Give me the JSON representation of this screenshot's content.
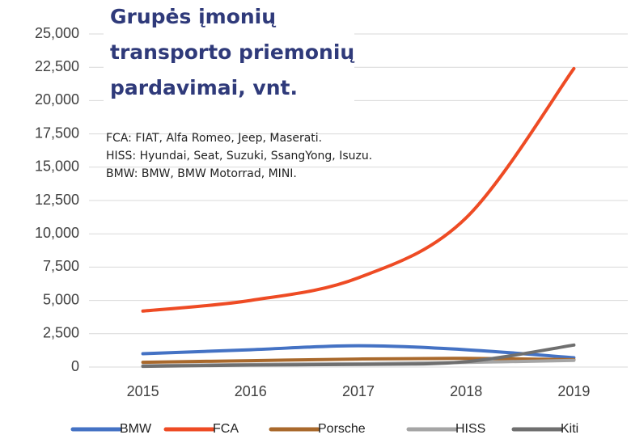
{
  "chart_data": {
    "type": "line",
    "title": [
      "Grupės įmonių",
      "transporto priemonių",
      "pardavimai, vnt."
    ],
    "annotations": [
      "FCA: FIAT, Alfa Romeo, Jeep, Maserati.",
      "HISS: Hyundai, Seat, Suzuki, SsangYong, Isuzu.",
      "BMW: BMW, BMW Motorrad, MINI."
    ],
    "categories": [
      "2015",
      "2016",
      "2017",
      "2018",
      "2019"
    ],
    "series": [
      {
        "name": "BMW",
        "color": "#4472c4",
        "values": [
          1000,
          1300,
          1600,
          1300,
          700
        ]
      },
      {
        "name": "FCA",
        "color": "#ee4b24",
        "values": [
          4200,
          5000,
          6700,
          11200,
          22400
        ]
      },
      {
        "name": "Porsche",
        "color": "#a9692c",
        "values": [
          360,
          480,
          600,
          650,
          550
        ]
      },
      {
        "name": "HISS",
        "color": "#a5a5a5",
        "values": [
          100,
          200,
          250,
          350,
          500
        ]
      },
      {
        "name": "Kiti",
        "color": "#6f6f6f",
        "values": [
          50,
          150,
          200,
          400,
          1650
        ]
      }
    ],
    "ylim": [
      0,
      25000
    ],
    "yticks": [
      0,
      {
        "value": 2500,
        "label": "2,500"
      },
      {
        "value": 5000,
        "label": "5,000"
      },
      {
        "value": 7500,
        "label": "7,500"
      },
      {
        "value": 10000,
        "label": "10,000"
      },
      {
        "value": 12500,
        "label": "12,500"
      },
      {
        "value": 15000,
        "label": "15,000"
      },
      {
        "value": 17500,
        "label": "17,500"
      },
      {
        "value": 20000,
        "label": "20,000"
      },
      {
        "value": 22500,
        "label": "22,500"
      },
      {
        "value": 25000,
        "label": "25,000"
      }
    ],
    "grid": true,
    "legend": "bottom"
  }
}
